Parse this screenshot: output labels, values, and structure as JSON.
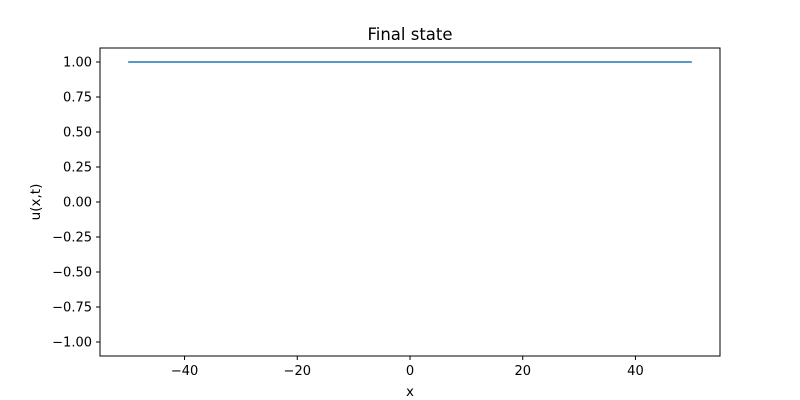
{
  "chart_data": {
    "type": "line",
    "title": "Final state",
    "xlabel": "x",
    "ylabel": "u(x,t)",
    "xlim": [
      -55,
      55
    ],
    "ylim": [
      -1.1,
      1.1
    ],
    "x_ticks": [
      -40,
      -20,
      0,
      20,
      40
    ],
    "x_tick_labels": [
      "−40",
      "−20",
      "0",
      "20",
      "40"
    ],
    "y_ticks": [
      1.0,
      0.75,
      0.5,
      0.25,
      0.0,
      -0.25,
      -0.5,
      -0.75,
      -1.0
    ],
    "y_tick_labels": [
      "1.00",
      "0.75",
      "0.50",
      "0.25",
      "0.00",
      "−0.25",
      "−0.50",
      "−0.75",
      "−1.00"
    ],
    "grid": false,
    "series": [
      {
        "color": "#1f77b4",
        "x": [
          -50,
          50
        ],
        "y": [
          1.0,
          1.0
        ]
      }
    ]
  }
}
